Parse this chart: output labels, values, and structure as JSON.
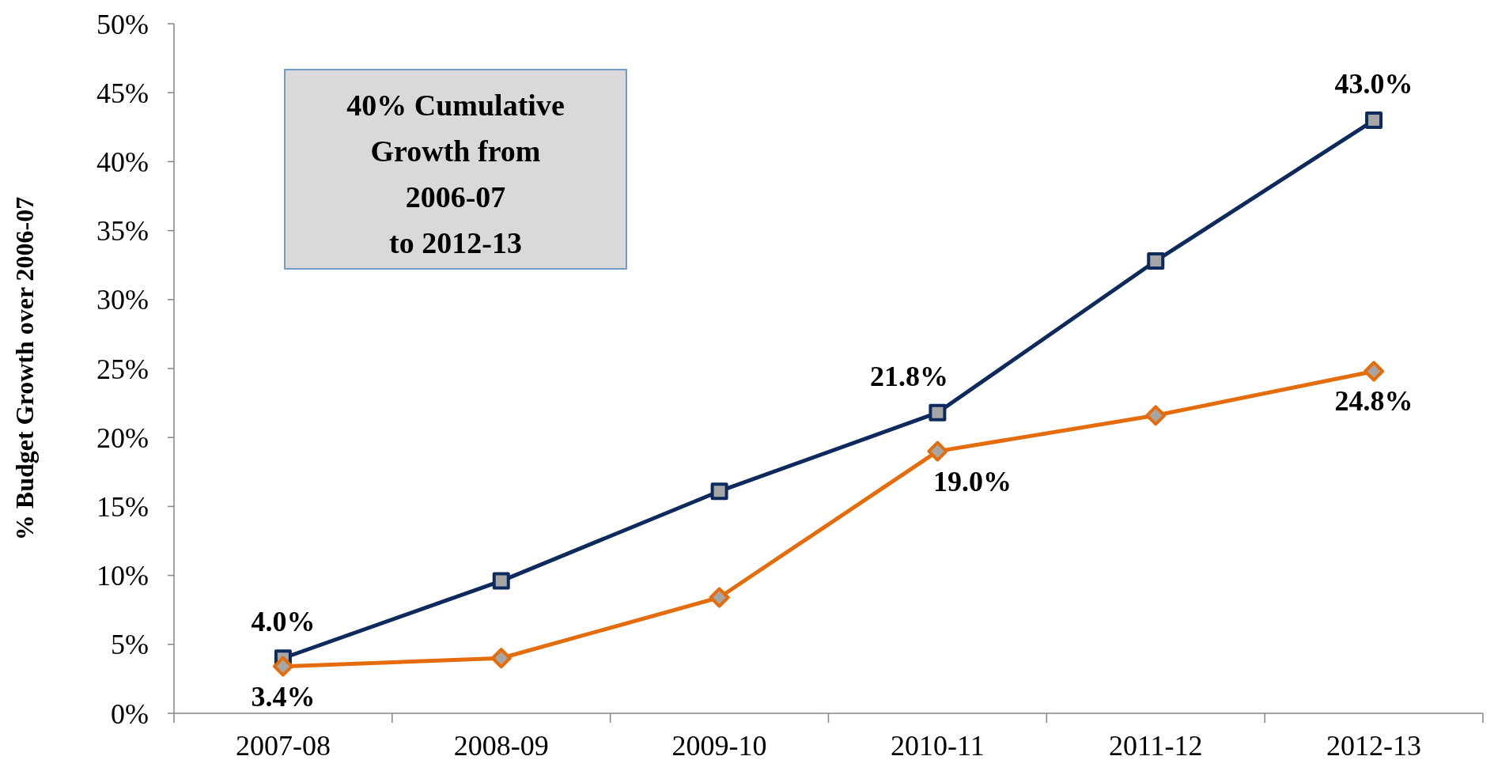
{
  "chart_data": {
    "type": "line",
    "ylabel": "% Budget Growth over 2006-07",
    "categories": [
      "2007-08",
      "2008-09",
      "2009-10",
      "2010-11",
      "2011-12",
      "2012-13"
    ],
    "series": [
      {
        "color": "#0d2a5c",
        "marker": "square",
        "values": [
          4.0,
          9.6,
          16.1,
          21.8,
          32.8,
          43.0
        ],
        "value_labels": [
          "4.0%",
          null,
          null,
          "21.8%",
          null,
          "43.0%"
        ]
      },
      {
        "color": "#e46c0a",
        "marker": "diamond",
        "values": [
          3.4,
          4.0,
          8.4,
          19.0,
          21.6,
          24.8
        ],
        "value_labels": [
          "3.4%",
          null,
          null,
          "19.0%",
          null,
          "24.8%"
        ]
      }
    ],
    "ylim": [
      0,
      50
    ],
    "yticks": [
      {
        "value": 0,
        "label": "0%"
      },
      {
        "value": 5,
        "label": "5%"
      },
      {
        "value": 10,
        "label": "10%"
      },
      {
        "value": 15,
        "label": "15%"
      },
      {
        "value": 20,
        "label": "20%"
      },
      {
        "value": 25,
        "label": "25%"
      },
      {
        "value": 30,
        "label": "30%"
      },
      {
        "value": 35,
        "label": "35%"
      },
      {
        "value": 40,
        "label": "40%"
      },
      {
        "value": 45,
        "label": "45%"
      },
      {
        "value": 50,
        "label": "50%"
      }
    ],
    "grid": false,
    "annotations": [
      "40% Cumulative\nGrowth from\n2006-07\nto 2012-13"
    ]
  }
}
